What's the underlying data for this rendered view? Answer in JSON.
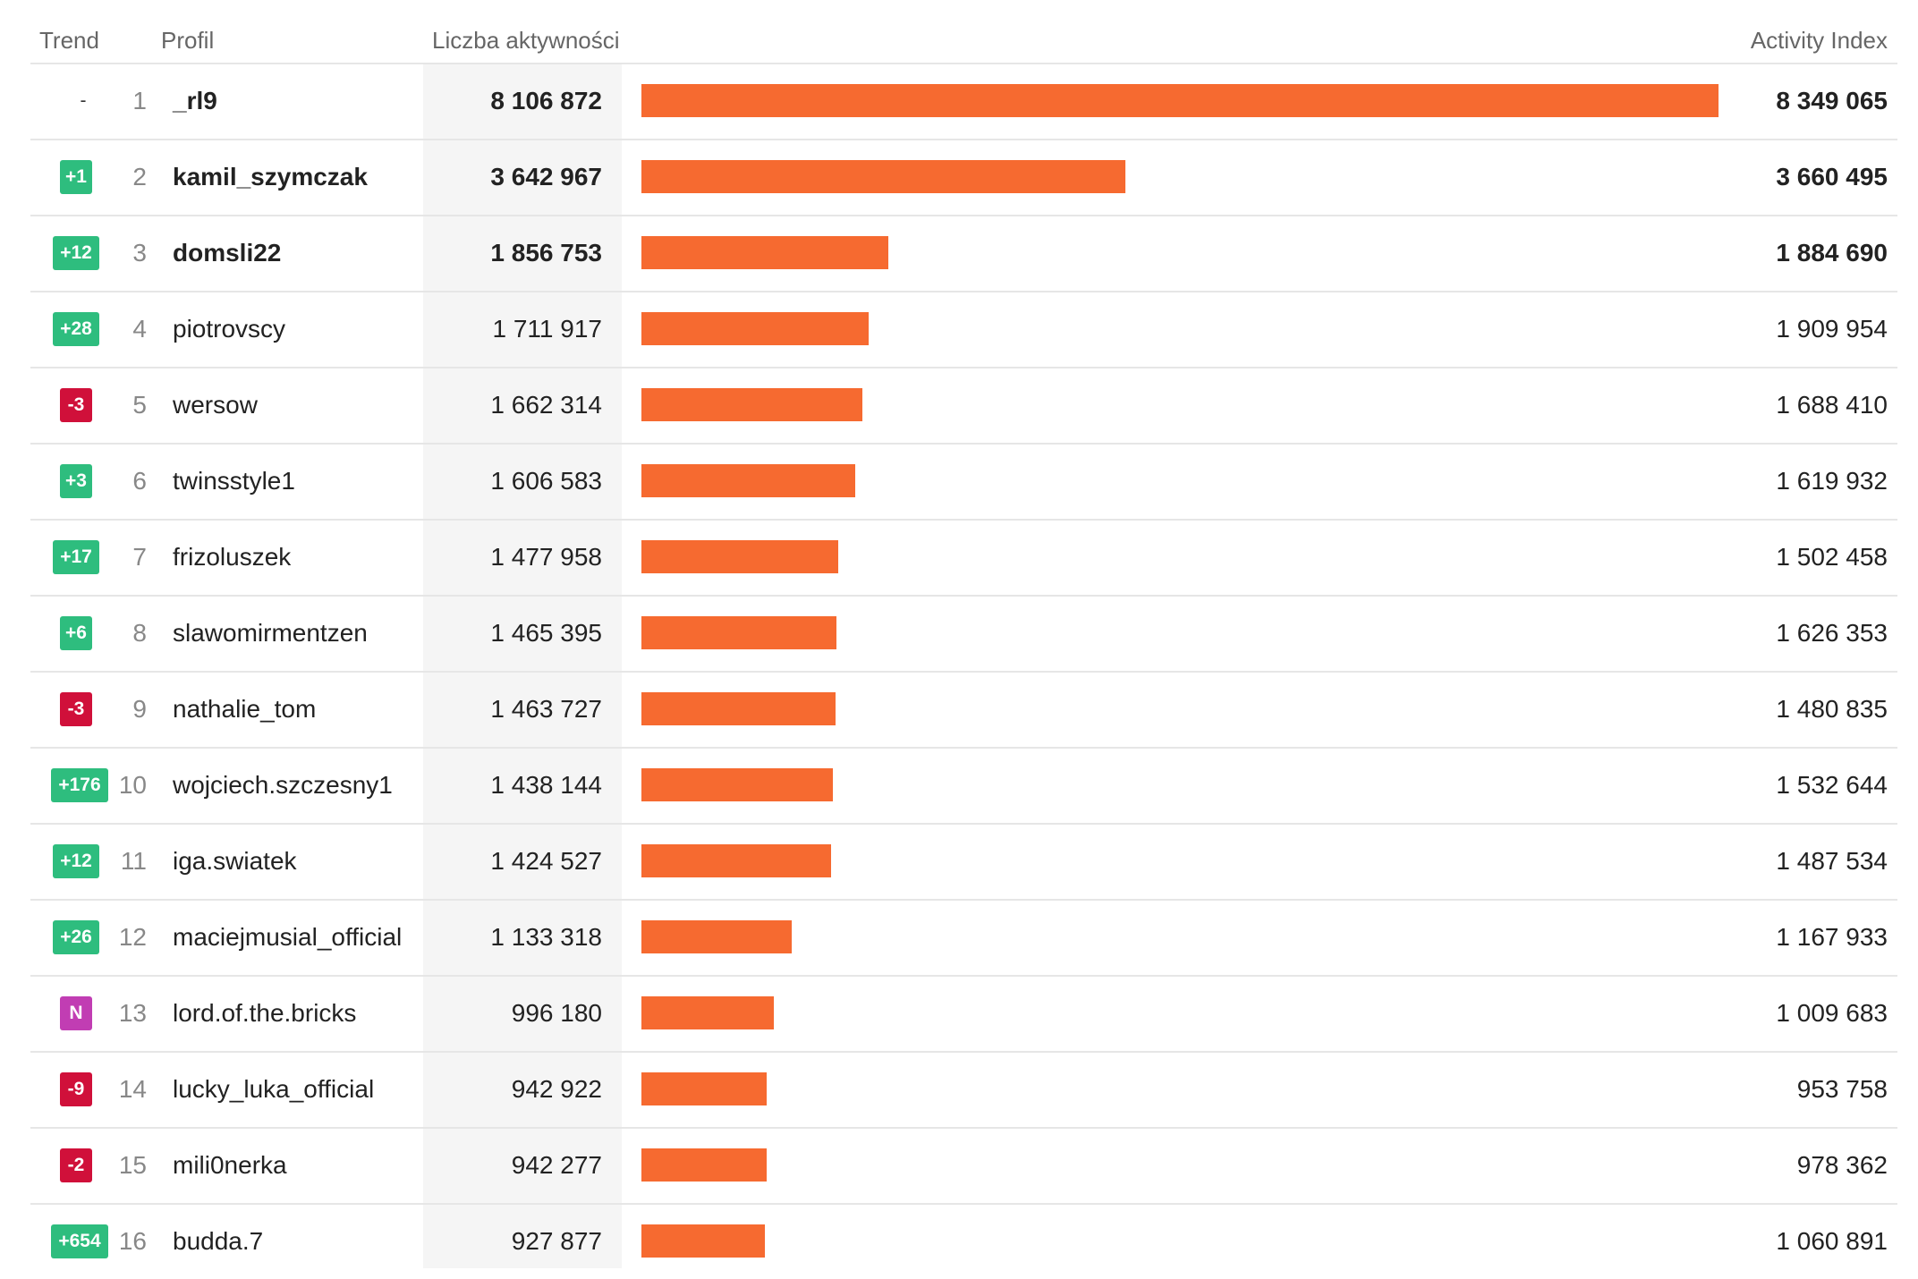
{
  "header": {
    "trend": "Trend",
    "profile": "Profil",
    "count": "Liczba aktywności",
    "index": "Activity Index"
  },
  "colors": {
    "bar": "#f66a30",
    "up": "#2ebd7e",
    "down": "#d0103a",
    "new": "#c13db3"
  },
  "chart_data": {
    "type": "bar",
    "orientation": "horizontal",
    "categories": [
      "_rl9",
      "kamil_szymczak",
      "domsli22",
      "piotrovscy",
      "wersow",
      "twinsstyle1",
      "frizoluszek",
      "slawomirmentzen",
      "nathalie_tom",
      "wojciech.szczesny1",
      "iga.swiatek",
      "maciejmusial_official",
      "lord.of.the.bricks",
      "lucky_luka_official",
      "mili0nerka",
      "budda.7"
    ],
    "series": [
      {
        "name": "Liczba aktywności",
        "values": [
          8106872,
          3642967,
          1856753,
          1711917,
          1662314,
          1606583,
          1477958,
          1465395,
          1463727,
          1438144,
          1424527,
          1133318,
          996180,
          942922,
          942277,
          927877
        ]
      },
      {
        "name": "Activity Index",
        "values": [
          8349065,
          3660495,
          1884690,
          1909954,
          1688410,
          1619932,
          1502458,
          1626353,
          1480835,
          1532644,
          1487534,
          1167933,
          1009683,
          953758,
          978362,
          1060891
        ]
      }
    ],
    "xlim": [
      0,
      8106872
    ]
  },
  "rows": [
    {
      "trend": "-",
      "trend_type": "none",
      "rank": "1",
      "name": "_rl9",
      "count": "8 106 872",
      "index": "8 349 065",
      "bold": true
    },
    {
      "trend": "+1",
      "trend_type": "up",
      "rank": "2",
      "name": "kamil_szymczak",
      "count": "3 642 967",
      "index": "3 660 495",
      "bold": true
    },
    {
      "trend": "+12",
      "trend_type": "up",
      "rank": "3",
      "name": "domsli22",
      "count": "1 856 753",
      "index": "1 884 690",
      "bold": true
    },
    {
      "trend": "+28",
      "trend_type": "up",
      "rank": "4",
      "name": "piotrovscy",
      "count": "1 711 917",
      "index": "1 909 954",
      "bold": false
    },
    {
      "trend": "-3",
      "trend_type": "down",
      "rank": "5",
      "name": "wersow",
      "count": "1 662 314",
      "index": "1 688 410",
      "bold": false
    },
    {
      "trend": "+3",
      "trend_type": "up",
      "rank": "6",
      "name": "twinsstyle1",
      "count": "1 606 583",
      "index": "1 619 932",
      "bold": false
    },
    {
      "trend": "+17",
      "trend_type": "up",
      "rank": "7",
      "name": "frizoluszek",
      "count": "1 477 958",
      "index": "1 502 458",
      "bold": false
    },
    {
      "trend": "+6",
      "trend_type": "up",
      "rank": "8",
      "name": "slawomirmentzen",
      "count": "1 465 395",
      "index": "1 626 353",
      "bold": false
    },
    {
      "trend": "-3",
      "trend_type": "down",
      "rank": "9",
      "name": "nathalie_tom",
      "count": "1 463 727",
      "index": "1 480 835",
      "bold": false
    },
    {
      "trend": "+176",
      "trend_type": "up",
      "rank": "10",
      "name": "wojciech.szczesny1",
      "count": "1 438 144",
      "index": "1 532 644",
      "bold": false
    },
    {
      "trend": "+12",
      "trend_type": "up",
      "rank": "11",
      "name": "iga.swiatek",
      "count": "1 424 527",
      "index": "1 487 534",
      "bold": false
    },
    {
      "trend": "+26",
      "trend_type": "up",
      "rank": "12",
      "name": "maciejmusial_official",
      "count": "1 133 318",
      "index": "1 167 933",
      "bold": false
    },
    {
      "trend": "N",
      "trend_type": "new",
      "rank": "13",
      "name": "lord.of.the.bricks",
      "count": "996 180",
      "index": "1 009 683",
      "bold": false
    },
    {
      "trend": "-9",
      "trend_type": "down",
      "rank": "14",
      "name": "lucky_luka_official",
      "count": "942 922",
      "index": "953 758",
      "bold": false
    },
    {
      "trend": "-2",
      "trend_type": "down",
      "rank": "15",
      "name": "mili0nerka",
      "count": "942 277",
      "index": "978 362",
      "bold": false
    },
    {
      "trend": "+654",
      "trend_type": "up",
      "rank": "16",
      "name": "budda.7",
      "count": "927 877",
      "index": "1 060 891",
      "bold": false
    }
  ]
}
